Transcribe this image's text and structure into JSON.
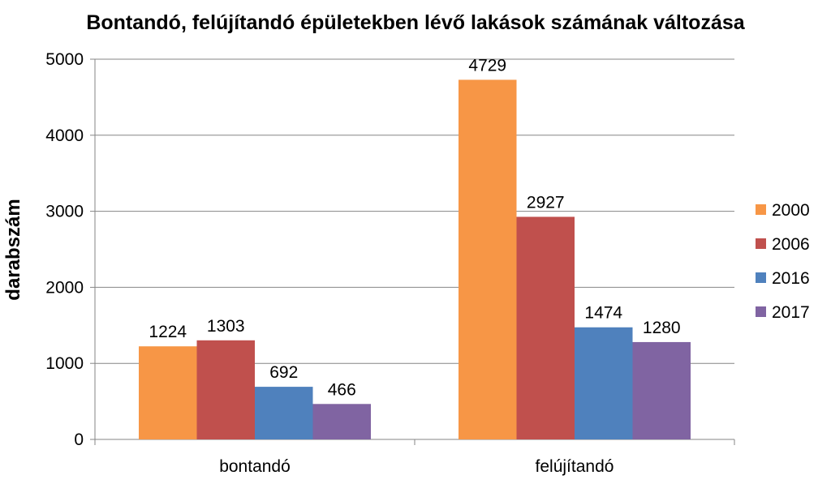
{
  "chart_data": {
    "type": "bar",
    "title": "Bontandó, felújítandó épületekben lévő lakások számának változása",
    "xlabel": "",
    "ylabel": "darabszám",
    "ylim": [
      0,
      5000
    ],
    "yticks": [
      0,
      1000,
      2000,
      3000,
      4000,
      5000
    ],
    "grid": true,
    "legend_position": "right",
    "categories": [
      "bontandó",
      "felújítandó"
    ],
    "series": [
      {
        "name": "2000",
        "color": "#f79646",
        "values": [
          1224,
          4729
        ]
      },
      {
        "name": "2006",
        "color": "#c0504d",
        "values": [
          1303,
          2927
        ]
      },
      {
        "name": "2016",
        "color": "#4f81bd",
        "values": [
          692,
          1474
        ]
      },
      {
        "name": "2017",
        "color": "#8064a2",
        "values": [
          466,
          1280
        ]
      }
    ]
  }
}
